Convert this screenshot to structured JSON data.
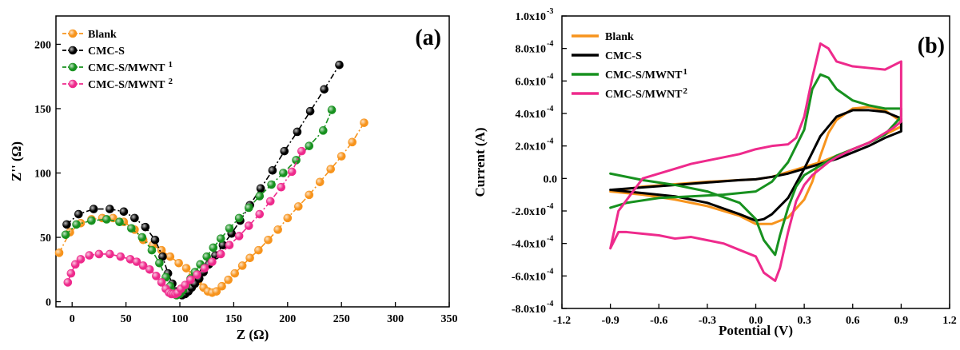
{
  "colors": {
    "blank": "#f7941d",
    "cmc_s": "#000000",
    "mwnt1": "#17911f",
    "mwnt2": "#ee2a8c"
  },
  "chart_data": [
    {
      "type": "scatter",
      "panel_label": "(a)",
      "xlabel": "Z (Ω)",
      "ylabel": "Z'' (Ω)",
      "xlim": [
        -15,
        350
      ],
      "ylim": [
        -4,
        222
      ],
      "xticks": [
        0,
        50,
        100,
        150,
        200,
        250,
        300,
        350
      ],
      "yticks": [
        0,
        50,
        100,
        150,
        200
      ],
      "grid": false,
      "legend_position": "top-left",
      "series": [
        {
          "name": "Blank",
          "sup": "",
          "color_key": "blank",
          "x": [
            -12,
            -2,
            8,
            18,
            28,
            38,
            48,
            58,
            66,
            75,
            83,
            91,
            99,
            106,
            112,
            117,
            122,
            126,
            130,
            134,
            139,
            145,
            151,
            158,
            165,
            173,
            182,
            191,
            200,
            210,
            220,
            230,
            240,
            250,
            260,
            271
          ],
          "y": [
            38,
            54,
            61,
            64,
            65,
            65,
            62,
            56,
            48,
            44,
            40,
            35,
            30,
            26,
            21,
            16,
            11,
            8,
            7,
            8,
            12,
            17,
            22,
            28,
            34,
            40,
            48,
            56,
            65,
            74,
            83,
            93,
            103,
            113,
            124,
            139
          ]
        },
        {
          "name": "CMC-S",
          "sup": "",
          "color_key": "cmc_s",
          "x": [
            -5,
            6,
            20,
            35,
            48,
            58,
            68,
            77,
            84,
            89,
            93,
            96,
            99,
            102,
            105,
            108,
            111,
            114,
            118,
            122,
            127,
            133,
            140,
            148,
            156,
            165,
            175,
            186,
            197,
            209,
            221,
            234,
            248
          ],
          "y": [
            60,
            68,
            72,
            72,
            70,
            65,
            58,
            48,
            35,
            22,
            14,
            8,
            6,
            5,
            6,
            8,
            11,
            14,
            18,
            23,
            29,
            36,
            44,
            53,
            63,
            75,
            88,
            102,
            117,
            132,
            148,
            165,
            184
          ]
        },
        {
          "name": "CMC-S/MWNT",
          "sup": "1",
          "color_key": "mwnt1",
          "x": [
            -6,
            4,
            18,
            32,
            44,
            55,
            65,
            74,
            81,
            87,
            91,
            94,
            97,
            100,
            103,
            106,
            110,
            114,
            119,
            125,
            131,
            138,
            146,
            155,
            164,
            174,
            185,
            196,
            208,
            220,
            233,
            241
          ],
          "y": [
            52,
            60,
            63,
            64,
            62,
            57,
            50,
            40,
            30,
            19,
            12,
            7,
            5,
            6,
            9,
            13,
            18,
            23,
            29,
            35,
            42,
            49,
            57,
            65,
            73,
            82,
            91,
            100,
            110,
            121,
            133,
            149
          ]
        },
        {
          "name": "CMC-S/MWNT",
          "sup": "2",
          "color_key": "mwnt2",
          "x": [
            -4,
            -1,
            3,
            8,
            16,
            25,
            35,
            45,
            54,
            60,
            66,
            72,
            78,
            83,
            87,
            90,
            92,
            94,
            96,
            98,
            101,
            105,
            110,
            116,
            123,
            130,
            138,
            146,
            155,
            164,
            174,
            184,
            194,
            204,
            213
          ],
          "y": [
            15,
            22,
            29,
            33,
            36,
            37,
            37,
            35,
            33,
            31,
            28,
            25,
            20,
            15,
            10,
            7,
            6,
            6,
            6,
            7,
            10,
            13,
            17,
            21,
            26,
            31,
            37,
            44,
            51,
            59,
            68,
            78,
            89,
            101,
            117
          ]
        }
      ]
    },
    {
      "type": "line",
      "panel_label": "(b)",
      "xlabel": "Potential (V)",
      "ylabel": "Current (A)",
      "xlim": [
        -1.2,
        1.2
      ],
      "ylim": [
        -0.0008,
        0.001
      ],
      "xticks": [
        -1.2,
        -0.9,
        -0.6,
        -0.3,
        0.0,
        0.3,
        0.6,
        0.9,
        1.2
      ],
      "xtick_labels": [
        "-1.2",
        "-0.9",
        "-0.6",
        "-0.3",
        "0.0",
        "0.3",
        "0.6",
        "0.9",
        "1.2"
      ],
      "yticks": [
        -0.0008,
        -0.0006,
        -0.0004,
        -0.0002,
        0.0,
        0.0002,
        0.0004,
        0.0006,
        0.0008,
        0.001
      ],
      "ytick_labels": [
        {
          "mant": "-8.0x10",
          "exp": "-4"
        },
        {
          "mant": "-6.0x10",
          "exp": "-4"
        },
        {
          "mant": "-4.0x10",
          "exp": "-4"
        },
        {
          "mant": "-2.0x10",
          "exp": "-4"
        },
        {
          "mant": "0.0",
          "exp": ""
        },
        {
          "mant": "2.0x10",
          "exp": "-4"
        },
        {
          "mant": "4.0x10",
          "exp": "-4"
        },
        {
          "mant": "6.0x10",
          "exp": "-4"
        },
        {
          "mant": "8.0x10",
          "exp": "-4"
        },
        {
          "mant": "1.0x10",
          "exp": "-3"
        }
      ],
      "grid": false,
      "legend_position": "top-left",
      "series": [
        {
          "name": "Blank",
          "sup": "",
          "color_key": "blank",
          "x": [
            -0.9,
            -0.7,
            -0.5,
            -0.3,
            -0.1,
            0.0,
            0.1,
            0.2,
            0.3,
            0.4,
            0.5,
            0.6,
            0.7,
            0.8,
            0.9,
            0.9,
            0.8,
            0.7,
            0.6,
            0.5,
            0.45,
            0.4,
            0.35,
            0.3,
            0.2,
            0.1,
            0.0,
            -0.1,
            -0.3,
            -0.5,
            -0.7,
            -0.9
          ],
          "y": [
            -8e-05,
            -5e-05,
            -3.5e-05,
            -2e-05,
            -1e-05,
            -5e-06,
            1e-05,
            4e-05,
            7e-05,
            0.0001,
            0.00014,
            0.00018,
            0.00022,
            0.00027,
            0.00032,
            0.00035,
            0.00042,
            0.00044,
            0.00043,
            0.00036,
            0.00028,
            0.00014,
            -2e-05,
            -0.00013,
            -0.00024,
            -0.00028,
            -0.00028,
            -0.00023,
            -0.00017,
            -0.00013,
            -0.0001,
            -8e-05
          ]
        },
        {
          "name": "CMC-S",
          "sup": "",
          "color_key": "cmc_s",
          "x": [
            -0.9,
            -0.7,
            -0.5,
            -0.3,
            -0.1,
            0.0,
            0.1,
            0.2,
            0.3,
            0.4,
            0.5,
            0.6,
            0.7,
            0.8,
            0.9,
            0.9,
            0.8,
            0.7,
            0.6,
            0.5,
            0.4,
            0.3,
            0.2,
            0.1,
            0.05,
            0.0,
            -0.1,
            -0.3,
            -0.5,
            -0.7,
            -0.9
          ],
          "y": [
            -7e-05,
            -5.5e-05,
            -4e-05,
            -2.5e-05,
            -1e-05,
            -5e-06,
            1e-05,
            3e-05,
            6e-05,
            9e-05,
            0.00012,
            0.00016,
            0.0002,
            0.00025,
            0.00029,
            0.00037,
            0.00041,
            0.00042,
            0.00042,
            0.00038,
            0.00026,
            6e-05,
            -0.00012,
            -0.00022,
            -0.00025,
            -0.00026,
            -0.00022,
            -0.00015,
            -0.00011,
            -9e-05,
            -7e-05
          ]
        },
        {
          "name": "CMC-S/MWNT",
          "sup": "1",
          "color_key": "mwnt1",
          "x": [
            -0.9,
            -0.8,
            -0.6,
            -0.4,
            -0.2,
            0.0,
            0.1,
            0.2,
            0.3,
            0.35,
            0.4,
            0.45,
            0.5,
            0.6,
            0.7,
            0.8,
            0.9,
            0.9,
            0.8,
            0.7,
            0.6,
            0.5,
            0.4,
            0.3,
            0.25,
            0.2,
            0.15,
            0.12,
            0.05,
            0.0,
            -0.1,
            -0.3,
            -0.5,
            -0.7,
            -0.9
          ],
          "y": [
            -0.00018,
            -0.00015,
            -0.00012,
            -0.00011,
            -0.0001,
            -8e-05,
            -2e-05,
            0.0001,
            0.0003,
            0.00055,
            0.00064,
            0.00062,
            0.00055,
            0.00048,
            0.00045,
            0.00043,
            0.00043,
            0.00038,
            0.00027,
            0.00022,
            0.00018,
            0.00014,
            8e-05,
            2e-05,
            -5e-05,
            -0.00018,
            -0.00035,
            -0.00047,
            -0.00038,
            -0.00025,
            -0.00015,
            -8e-05,
            -4e-05,
            -1e-05,
            3e-05
          ]
        },
        {
          "name": "CMC-S/MWNT",
          "sup": "2",
          "color_key": "mwnt2",
          "x": [
            -0.9,
            -0.85,
            -0.7,
            -0.5,
            -0.4,
            -0.3,
            -0.1,
            0.0,
            0.1,
            0.2,
            0.25,
            0.3,
            0.35,
            0.4,
            0.45,
            0.5,
            0.6,
            0.7,
            0.8,
            0.9,
            0.9,
            0.85,
            0.8,
            0.7,
            0.6,
            0.5,
            0.45,
            0.4,
            0.35,
            0.3,
            0.25,
            0.2,
            0.15,
            0.12,
            0.05,
            0.0,
            -0.1,
            -0.2,
            -0.3,
            -0.4,
            -0.5,
            -0.6,
            -0.7,
            -0.8,
            -0.85,
            -0.9
          ],
          "y": [
            -0.00043,
            -0.0002,
            0.0,
            6e-05,
            9e-05,
            0.00011,
            0.00015,
            0.00018,
            0.0002,
            0.00021,
            0.00025,
            0.00038,
            0.00062,
            0.00083,
            0.0008,
            0.00072,
            0.00069,
            0.00068,
            0.00067,
            0.00072,
            0.00035,
            0.00031,
            0.00028,
            0.00022,
            0.00018,
            0.00013,
            0.0001,
            6e-05,
            2e-05,
            -4e-05,
            -0.00014,
            -0.00033,
            -0.00055,
            -0.00063,
            -0.00058,
            -0.00048,
            -0.00044,
            -0.0004,
            -0.00038,
            -0.00036,
            -0.00037,
            -0.00035,
            -0.00034,
            -0.00033,
            -0.00033,
            -0.00043
          ]
        }
      ]
    }
  ]
}
